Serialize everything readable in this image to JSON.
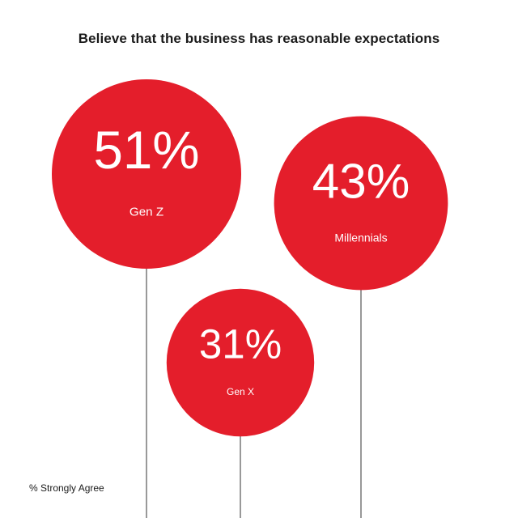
{
  "chart_data": {
    "type": "bubble",
    "title": "Believe that the business has reasonable expectations",
    "measure": "% Strongly Agree",
    "categories": [
      "Gen Z",
      "Millennials",
      "Gen X"
    ],
    "values": [
      51,
      43,
      31
    ],
    "value_labels": [
      "51%",
      "43%",
      "31%"
    ],
    "unit": "%",
    "color": "#e41e2b",
    "stem_color": "#555555"
  }
}
